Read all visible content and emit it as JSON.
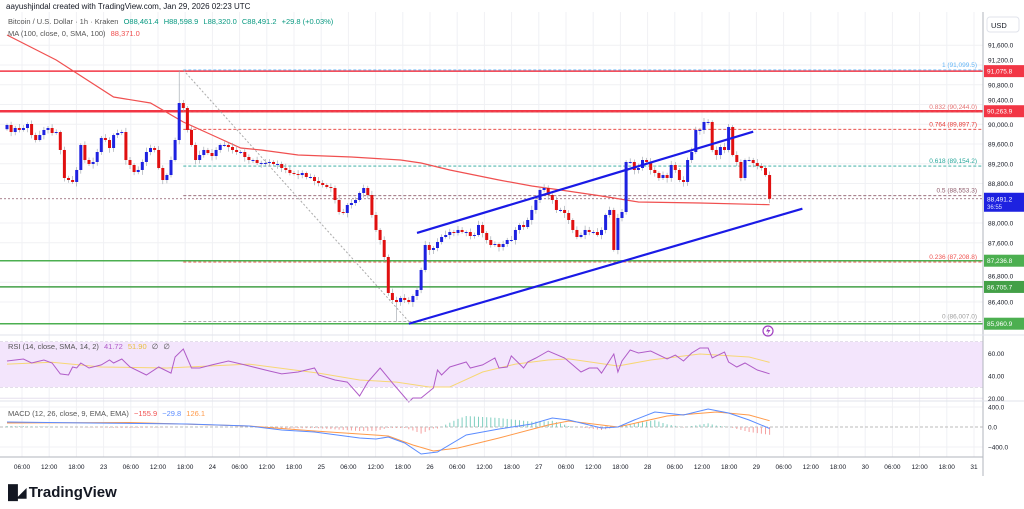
{
  "header": {
    "attribution": "aayushjindal created with TradingView.com, Jan 29, 2026 02:23 UTC"
  },
  "legend": {
    "symbol": "Bitcoin / U.S. Dollar · 1h · Kraken",
    "open": "O88,461.4",
    "high": "H88,598.9",
    "low": "L88,320.0",
    "close": "C88,491.2",
    "change": "+29.8 (+0.03%)",
    "ma_label": "MA (100, close, 0, SMA, 100)",
    "ma_value": "88,371.0"
  },
  "rsi_legend": {
    "label": "RSI (14, close, SMA, 14, 2)",
    "value": "41.72",
    "sma": "51.90",
    "extra1": "∅",
    "extra2": "∅"
  },
  "macd_legend": {
    "label": "MACD (12, 26, close, 9, EMA, EMA)",
    "hist": "−155.9",
    "macd": "−29.8",
    "signal": "126.1"
  },
  "price_axis": {
    "currency": "USD",
    "ticks": [
      91600,
      91200,
      90800,
      90400,
      90000,
      89600,
      89200,
      88800,
      88000,
      87600,
      86800,
      86400
    ],
    "tick_labels": [
      "91,600.0",
      "91,200.0",
      "90,800.0",
      "90,400.0",
      "90,000.0",
      "89,600.0",
      "89,200.0",
      "88,800.0",
      "88,000.0",
      "87,600.0",
      "86,800.0",
      "86,400.0"
    ],
    "last_price": {
      "price": 88491.2,
      "label": "88,491.2",
      "countdown": "36:55",
      "color": "#1e22e0"
    }
  },
  "levels": [
    {
      "price": 91075.8,
      "label": "91,075.8",
      "color": "#f23645",
      "width": 1.5
    },
    {
      "price": 90263.9,
      "label": "90,263.9",
      "color": "#f23645",
      "width": 2.5
    },
    {
      "price": 87236.8,
      "label": "87,236.8",
      "color": "#4caf50",
      "width": 1.5
    },
    {
      "price": 86705.7,
      "label": "86,705.7",
      "color": "#43a047",
      "width": 1.5
    },
    {
      "price": 85960.9,
      "label": "85,960.9",
      "color": "#4caf50",
      "width": 1.5
    }
  ],
  "fib": [
    {
      "ratio": "1",
      "price": 91099.5,
      "label": "1 (91,099.5)",
      "color": "#64b5f6"
    },
    {
      "ratio": "0.832",
      "price": 90244.0,
      "label": "0.832 (90,244.0)",
      "color": "#e57373"
    },
    {
      "ratio": "0.764",
      "price": 89897.7,
      "label": "0.764 (89,897.7)",
      "color": "#e53935"
    },
    {
      "ratio": "0.618",
      "price": 89154.2,
      "label": "0.618 (89,154.2)",
      "color": "#26a69a"
    },
    {
      "ratio": "0.5",
      "price": 88553.3,
      "label": "0.5 (88,553.3)",
      "color": "#8d5a6a"
    },
    {
      "ratio": "0.236",
      "price": 87208.8,
      "label": "0.236 (87,208.8)",
      "color": "#ef5350"
    },
    {
      "ratio": "0",
      "price": 86007.0,
      "label": "0 (86,007.0)",
      "color": "#9e9e9e"
    }
  ],
  "rsi_axis": {
    "ticks": [
      60,
      40,
      20
    ],
    "tick_labels": [
      "60.00",
      "40.00",
      "20.00"
    ]
  },
  "macd_axis": {
    "ticks": [
      400,
      0,
      -400
    ],
    "tick_labels": [
      "400.0",
      "0.0",
      "−400.0"
    ]
  },
  "time_axis": {
    "labels": [
      "06:00",
      "12:00",
      "18:00",
      "23",
      "06:00",
      "12:00",
      "18:00",
      "24",
      "06:00",
      "12:00",
      "18:00",
      "25",
      "06:00",
      "12:00",
      "18:00",
      "26",
      "06:00",
      "12:00",
      "18:00",
      "27",
      "06:00",
      "12:00",
      "18:00",
      "28",
      "06:00",
      "12:00",
      "18:00",
      "29",
      "06:00",
      "12:00",
      "18:00",
      "30",
      "06:00",
      "12:00",
      "18:00",
      "31"
    ]
  },
  "colors": {
    "up": "#1e22e0",
    "down": "#e01010",
    "ma": "#f05050",
    "rsi": "#b05cc8",
    "rsi_sma": "#f7d774",
    "macd": "#5b8cff",
    "signal": "#ff9a4a",
    "channel": "#1a1ae6"
  },
  "chart_data": {
    "type": "candlestick",
    "symbol": "Bitcoin / U.S. Dollar",
    "interval": "1h",
    "exchange": "Kraken",
    "first_open": 89900,
    "closes": [
      89985,
      89843,
      89924,
      89884,
      89924,
      90005,
      89782,
      89681,
      89782,
      89884,
      89924,
      89823,
      89843,
      89479,
      88912,
      88871,
      88831,
      89074,
      89580,
      89276,
      89195,
      89236,
      89438,
      89722,
      89681,
      89519,
      89782,
      89823,
      89843,
      89276,
      89175,
      89033,
      89074,
      89236,
      89438,
      89519,
      89479,
      89114,
      88871,
      88972,
      89276,
      89681,
      90430,
      90329,
      89884,
      89580,
      89276,
      89377,
      89479,
      89418,
      89357,
      89479,
      89580,
      89580,
      89539,
      89479,
      89438,
      89438,
      89337,
      89276,
      89276,
      89216,
      89216,
      89216,
      89236,
      89195,
      89195,
      89114,
      89074,
      89013,
      88993,
      88972,
      89013,
      88932,
      88932,
      88851,
      88810,
      88770,
      88729,
      88709,
      88466,
      88223,
      88203,
      88365,
      88405,
      88466,
      88608,
      88709,
      88567,
      88163,
      87859,
      87656,
      87312,
      86583,
      86441,
      86400,
      86482,
      86441,
      86400,
      86522,
      86644,
      87049,
      87555,
      87454,
      87494,
      87616,
      87717,
      87757,
      87818,
      87798,
      87859,
      87818,
      87818,
      87737,
      87757,
      87960,
      87798,
      87656,
      87555,
      87575,
      87514,
      87575,
      87656,
      87656,
      87859,
      87960,
      87919,
      88061,
      88264,
      88466,
      88669,
      88709,
      88567,
      88466,
      88264,
      88264,
      88203,
      88061,
      87859,
      87717,
      87757,
      87859,
      87818,
      87818,
      87757,
      87859,
      88163,
      88264,
      87454,
      88102,
      88223,
      89236,
      89236,
      89074,
      89114,
      89276,
      89236,
      89074,
      89013,
      88912,
      88972,
      88912,
      89175,
      89074,
      88871,
      88831,
      89276,
      89438,
      89884,
      89884,
      90046,
      90046,
      89479,
      89377,
      89539,
      89479,
      89944,
      89377,
      89236,
      88912,
      89276,
      89276,
      89216,
      89155,
      89114,
      88972,
      88491
    ],
    "ma100": [
      [
        0,
        91807
      ],
      [
        12,
        91301
      ],
      [
        26,
        90552
      ],
      [
        35,
        90430
      ],
      [
        43,
        90046
      ],
      [
        50,
        89782
      ],
      [
        57,
        89519
      ],
      [
        62,
        89479
      ],
      [
        71,
        89377
      ],
      [
        84,
        89337
      ],
      [
        96,
        89276
      ],
      [
        101,
        89216
      ],
      [
        108,
        89074
      ],
      [
        120,
        88871
      ],
      [
        128,
        88750
      ],
      [
        135,
        88669
      ],
      [
        145,
        88547
      ],
      [
        154,
        88425
      ],
      [
        169,
        88405
      ],
      [
        186,
        88371
      ]
    ],
    "channel": {
      "upper": [
        [
          100,
          87800
        ],
        [
          182,
          89850
        ]
      ],
      "lower": [
        [
          98,
          85960
        ],
        [
          194,
          88290
        ]
      ]
    },
    "fib_anchor": {
      "from_index": 43,
      "to_index": 98
    },
    "rsi": [
      [
        0,
        53.1
      ],
      [
        4,
        54.9
      ],
      [
        6,
        51.3
      ],
      [
        9,
        54
      ],
      [
        11,
        51.3
      ],
      [
        13,
        41.6
      ],
      [
        15,
        40.7
      ],
      [
        16,
        47.8
      ],
      [
        17,
        46.9
      ],
      [
        18,
        51.3
      ],
      [
        20,
        46.9
      ],
      [
        23,
        49.6
      ],
      [
        25,
        54
      ],
      [
        26,
        51.3
      ],
      [
        28,
        54.9
      ],
      [
        30,
        47.8
      ],
      [
        34,
        40.7
      ],
      [
        37,
        47.8
      ],
      [
        40,
        42.4
      ],
      [
        41,
        56.7
      ],
      [
        43,
        63.8
      ],
      [
        45,
        46.9
      ],
      [
        47,
        46.9
      ],
      [
        50,
        49.6
      ],
      [
        54,
        53.1
      ],
      [
        58,
        49.6
      ],
      [
        64,
        44.2
      ],
      [
        67,
        41.6
      ],
      [
        71,
        43.3
      ],
      [
        75,
        46.9
      ],
      [
        76,
        40.7
      ],
      [
        80,
        36.2
      ],
      [
        83,
        34.4
      ],
      [
        86,
        22
      ],
      [
        88,
        34.4
      ],
      [
        91,
        46.9
      ],
      [
        94,
        33.6
      ],
      [
        98,
        16.7
      ],
      [
        99,
        20.2
      ],
      [
        101,
        20.2
      ],
      [
        104,
        29.1
      ],
      [
        105,
        45.1
      ],
      [
        106,
        40.7
      ],
      [
        108,
        47.8
      ],
      [
        112,
        52.2
      ],
      [
        113,
        46.9
      ],
      [
        116,
        49.6
      ],
      [
        119,
        55.8
      ],
      [
        120,
        46.9
      ],
      [
        122,
        47.8
      ],
      [
        123,
        57.6
      ],
      [
        126,
        46.9
      ],
      [
        127,
        52.2
      ],
      [
        129,
        55.8
      ],
      [
        132,
        62
      ],
      [
        136,
        55.8
      ],
      [
        140,
        43.3
      ],
      [
        142,
        46.9
      ],
      [
        144,
        46.9
      ],
      [
        145,
        42.4
      ],
      [
        148,
        59.3
      ],
      [
        149,
        43.3
      ],
      [
        150,
        53.1
      ],
      [
        152,
        62.9
      ],
      [
        154,
        60.2
      ],
      [
        157,
        62
      ],
      [
        161,
        54.9
      ],
      [
        163,
        58.4
      ],
      [
        165,
        53.1
      ],
      [
        167,
        60.2
      ],
      [
        169,
        64.7
      ],
      [
        171,
        64.7
      ],
      [
        172,
        55.8
      ],
      [
        175,
        61.1
      ],
      [
        176,
        52.2
      ],
      [
        178,
        47.8
      ],
      [
        180,
        51.3
      ],
      [
        183,
        45.1
      ],
      [
        186,
        41.72
      ]
    ],
    "rsi_sma": [
      [
        0,
        50.4
      ],
      [
        11,
        52
      ],
      [
        23,
        47.8
      ],
      [
        39,
        46.9
      ],
      [
        59,
        50.4
      ],
      [
        76,
        42.4
      ],
      [
        86,
        36.2
      ],
      [
        95,
        34.4
      ],
      [
        103,
        30
      ],
      [
        108,
        30
      ],
      [
        116,
        43.3
      ],
      [
        124,
        50.4
      ],
      [
        132,
        54
      ],
      [
        137,
        55
      ],
      [
        149,
        48.7
      ],
      [
        157,
        54
      ],
      [
        169,
        59.3
      ],
      [
        181,
        56.7
      ],
      [
        186,
        51.9
      ]
    ],
    "macd": [
      [
        0,
        100
      ],
      [
        20,
        80
      ],
      [
        44,
        60
      ],
      [
        59,
        20
      ],
      [
        67,
        -60
      ],
      [
        75,
        -100
      ],
      [
        86,
        -220
      ],
      [
        90,
        -240
      ],
      [
        93,
        -200
      ],
      [
        97,
        -320
      ],
      [
        101,
        -540
      ],
      [
        105,
        -500
      ],
      [
        112,
        -160
      ],
      [
        120,
        -40
      ],
      [
        128,
        60
      ],
      [
        133,
        180
      ],
      [
        137,
        140
      ],
      [
        145,
        -20
      ],
      [
        149,
        0
      ],
      [
        153,
        140
      ],
      [
        158,
        300
      ],
      [
        165,
        240
      ],
      [
        171,
        360
      ],
      [
        176,
        280
      ],
      [
        181,
        140
      ],
      [
        186,
        -29.8
      ]
    ],
    "signal": [
      [
        0,
        80
      ],
      [
        30,
        90
      ],
      [
        59,
        20
      ],
      [
        75,
        -80
      ],
      [
        86,
        -140
      ],
      [
        93,
        -180
      ],
      [
        99,
        -360
      ],
      [
        104,
        -480
      ],
      [
        110,
        -420
      ],
      [
        120,
        -220
      ],
      [
        132,
        40
      ],
      [
        137,
        120
      ],
      [
        149,
        0
      ],
      [
        161,
        220
      ],
      [
        173,
        300
      ],
      [
        181,
        240
      ],
      [
        186,
        126.1
      ]
    ],
    "rsi_band": [
      30,
      70
    ]
  }
}
